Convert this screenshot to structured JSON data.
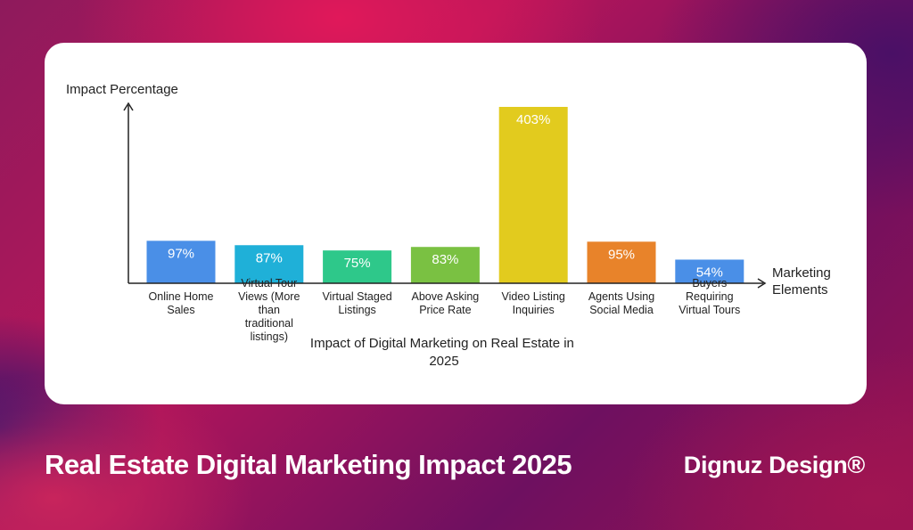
{
  "chart_data": {
    "type": "bar",
    "title": "Impact of Digital Marketing on Real Estate in 2025",
    "ylabel": "Impact Percentage",
    "xlabel": "Marketing Elements",
    "categories": [
      "Online Home Sales",
      "Virtual Tour Views (More than traditional listings)",
      "Virtual Staged Listings",
      "Above Asking Price Rate",
      "Video Listing Inquiries",
      "Agents Using Social Media",
      "Buyers Requiring Virtual Tours"
    ],
    "values": [
      97,
      87,
      75,
      83,
      403,
      95,
      54
    ],
    "data_labels": [
      "97%",
      "87%",
      "75%",
      "83%",
      "403%",
      "95%",
      "54%"
    ],
    "colors": [
      "#4a8fe7",
      "#1fb0d8",
      "#2ec88a",
      "#7ac142",
      "#e2cb1e",
      "#e8832a",
      "#4a8fe7"
    ],
    "ylim": [
      0,
      403
    ]
  },
  "footer": {
    "title": "Real Estate Digital Marketing Impact 2025",
    "brand": "Dignuz Design®"
  }
}
